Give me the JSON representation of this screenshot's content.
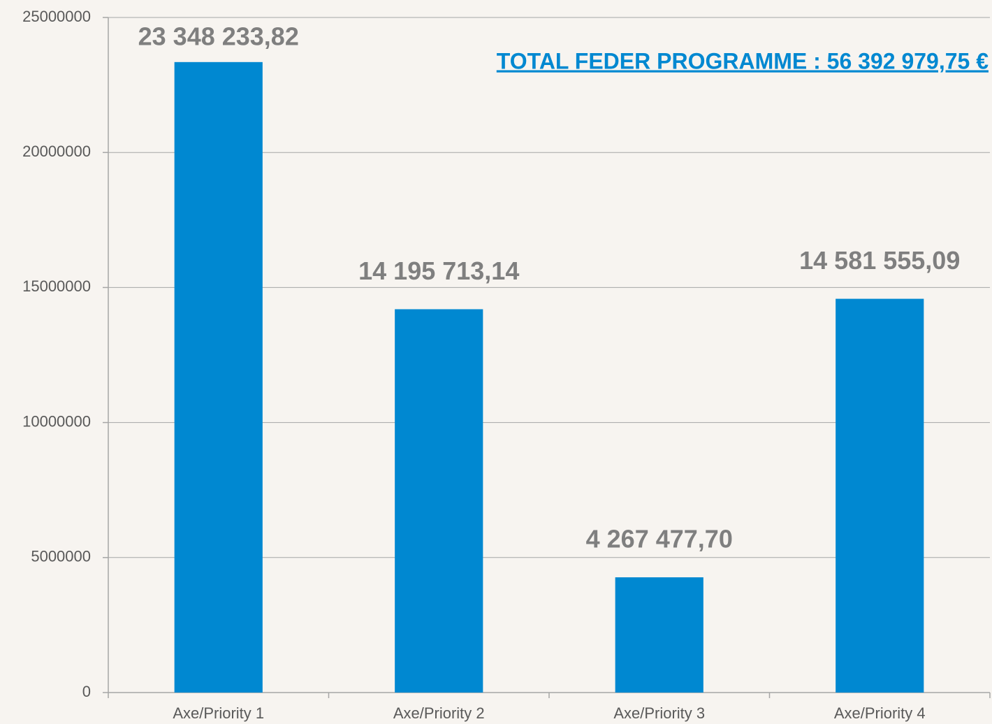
{
  "chart_data": {
    "type": "bar",
    "annotation": "TOTAL FEDER PROGRAMME : 56 392 979,75 €",
    "categories": [
      "Axe/Priority 1",
      "Axe/Priority 2",
      "Axe/Priority 3",
      "Axe/Priority 4"
    ],
    "values": [
      23348233.82,
      14195713.14,
      4267477.7,
      14581555.09
    ],
    "value_labels": [
      "23 348 233,82",
      "14 195 713,14",
      "4 267 477,70",
      "14 581 555,09"
    ],
    "color": "#0088d1",
    "ylim": [
      0,
      25000000
    ],
    "yticks": [
      0,
      5000000,
      10000000,
      15000000,
      20000000,
      25000000
    ],
    "grid": true
  }
}
